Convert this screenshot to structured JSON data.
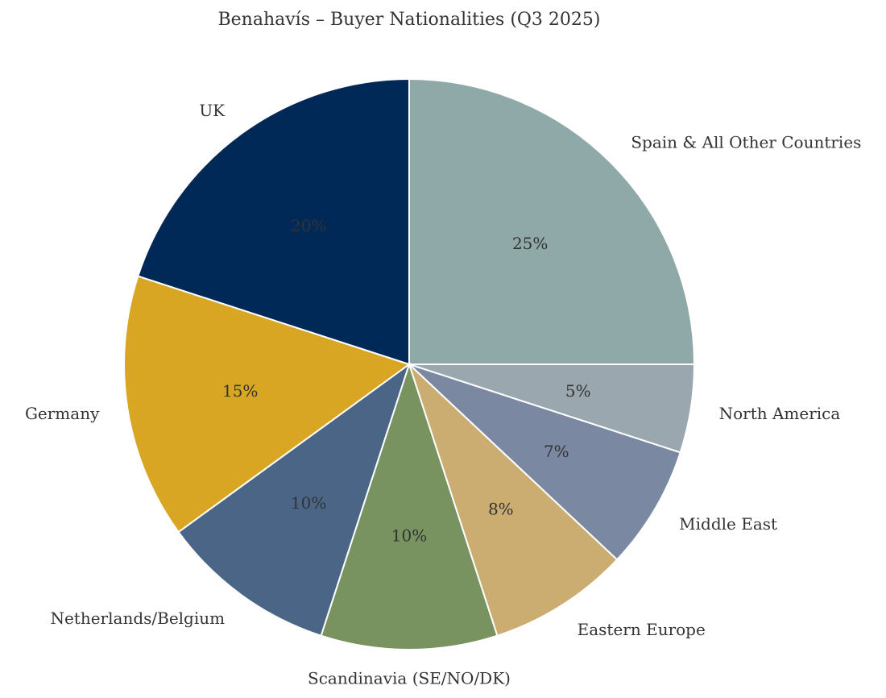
{
  "chart_data": {
    "type": "pie",
    "title": "Benahavís – Buyer Nationalities (Q3 2025)",
    "start_angle_deg": 90,
    "direction": "clockwise",
    "slices": [
      {
        "label": "Spain & All Other Countries",
        "value": 25,
        "pct_label": "25%",
        "color": "#8FA8A8"
      },
      {
        "label": "North America",
        "value": 5,
        "pct_label": "5%",
        "color": "#9AA7AE"
      },
      {
        "label": "Middle East",
        "value": 7,
        "pct_label": "7%",
        "color": "#7A89A1"
      },
      {
        "label": "Eastern Europe",
        "value": 8,
        "pct_label": "8%",
        "color": "#CBAD72"
      },
      {
        "label": "Scandinavia (SE/NO/DK)",
        "value": 10,
        "pct_label": "10%",
        "color": "#789260"
      },
      {
        "label": "Netherlands/Belgium",
        "value": 10,
        "pct_label": "10%",
        "color": "#4A6586"
      },
      {
        "label": "Germany",
        "value": 15,
        "pct_label": "15%",
        "color": "#D8A622"
      },
      {
        "label": "UK",
        "value": 20,
        "pct_label": "20%",
        "color": "#002958"
      }
    ]
  }
}
